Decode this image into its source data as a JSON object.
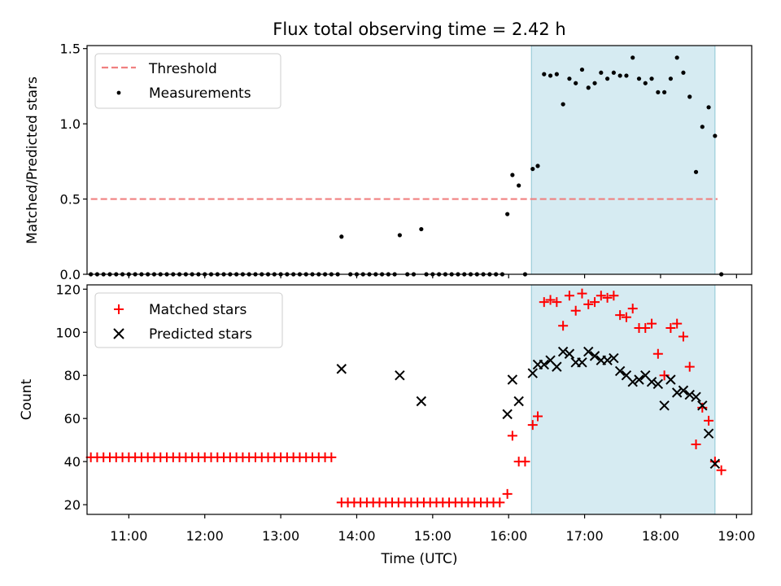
{
  "chart_data": {
    "type": "scatter",
    "title": "Flux total observing time = 2.42 h",
    "xlabel": "Time (UTC)",
    "x_ticks": [
      "11:00",
      "12:00",
      "13:00",
      "14:00",
      "15:00",
      "16:00",
      "17:00",
      "18:00",
      "19:00"
    ],
    "xlim": [
      "10:27",
      "19:12"
    ],
    "shaded_interval": [
      "16:18",
      "18:43"
    ],
    "shade_color": "#add8e6",
    "panels": [
      {
        "ylabel": "Matched/Predicted stars",
        "ylim": [
          0,
          1.52
        ],
        "y_ticks": [
          "0.0",
          "0.5",
          "1.0",
          "1.5"
        ],
        "legend": {
          "position": "upper left",
          "entries": [
            "Threshold",
            "Measurements"
          ]
        },
        "series": [
          {
            "name": "Threshold",
            "kind": "dashed-line",
            "color": "#f08080",
            "x": [
              "10:30",
              "18:45"
            ],
            "y": [
              0.5,
              0.5
            ]
          },
          {
            "name": "Measurements",
            "kind": "dot",
            "color": "#000000",
            "x": [
              "10:30",
              "10:35",
              "10:40",
              "10:45",
              "10:50",
              "10:55",
              "11:00",
              "11:05",
              "11:10",
              "11:15",
              "11:20",
              "11:25",
              "11:30",
              "11:35",
              "11:40",
              "11:45",
              "11:50",
              "11:55",
              "12:00",
              "12:05",
              "12:10",
              "12:15",
              "12:20",
              "12:25",
              "12:30",
              "12:35",
              "12:40",
              "12:45",
              "12:50",
              "12:55",
              "13:00",
              "13:05",
              "13:10",
              "13:15",
              "13:20",
              "13:25",
              "13:30",
              "13:35",
              "13:40",
              "13:45",
              "13:48",
              "13:55",
              "14:00",
              "14:05",
              "14:10",
              "14:15",
              "14:20",
              "14:25",
              "14:30",
              "14:34",
              "14:40",
              "14:45",
              "14:51",
              "14:55",
              "15:00",
              "15:05",
              "15:10",
              "15:15",
              "15:20",
              "15:25",
              "15:30",
              "15:35",
              "15:40",
              "15:45",
              "15:50",
              "15:55",
              "15:59",
              "16:03",
              "16:08",
              "16:13",
              "16:19",
              "16:23",
              "16:28",
              "16:33",
              "16:38",
              "16:43",
              "16:48",
              "16:53",
              "16:58",
              "17:03",
              "17:08",
              "17:13",
              "17:18",
              "17:23",
              "17:28",
              "17:33",
              "17:38",
              "17:43",
              "17:48",
              "17:53",
              "17:58",
              "18:03",
              "18:08",
              "18:13",
              "18:18",
              "18:23",
              "18:28",
              "18:33",
              "18:38",
              "18:43",
              "18:48"
            ],
            "y": [
              0,
              0,
              0,
              0,
              0,
              0,
              0,
              0,
              0,
              0,
              0,
              0,
              0,
              0,
              0,
              0,
              0,
              0,
              0,
              0,
              0,
              0,
              0,
              0,
              0,
              0,
              0,
              0,
              0,
              0,
              0,
              0,
              0,
              0,
              0,
              0,
              0,
              0,
              0,
              0,
              0.25,
              0,
              0,
              0,
              0,
              0,
              0,
              0,
              0,
              0.26,
              0,
              0,
              0.3,
              0,
              0,
              0,
              0,
              0,
              0,
              0,
              0,
              0,
              0,
              0,
              0,
              0,
              0.4,
              0.66,
              0.59,
              0,
              0.7,
              0.72,
              1.33,
              1.32,
              1.33,
              1.13,
              1.3,
              1.27,
              1.36,
              1.24,
              1.27,
              1.34,
              1.3,
              1.34,
              1.32,
              1.32,
              1.44,
              1.3,
              1.27,
              1.3,
              1.21,
              1.21,
              1.3,
              1.44,
              1.34,
              1.18,
              0.68,
              0.98,
              1.11,
              0.92,
              0
            ]
          }
        ]
      },
      {
        "ylabel": "Count",
        "ylim": [
          15.5,
          122
        ],
        "y_ticks": [
          "20",
          "40",
          "60",
          "80",
          "100",
          "120"
        ],
        "legend": {
          "position": "upper left",
          "entries": [
            "Matched stars",
            "Predicted stars"
          ]
        },
        "series": [
          {
            "name": "Matched stars",
            "kind": "plus",
            "color": "#ff0000",
            "x": [
              "10:30",
              "10:35",
              "10:40",
              "10:45",
              "10:50",
              "10:55",
              "11:00",
              "11:05",
              "11:10",
              "11:15",
              "11:20",
              "11:25",
              "11:30",
              "11:35",
              "11:40",
              "11:45",
              "11:50",
              "11:55",
              "12:00",
              "12:05",
              "12:10",
              "12:15",
              "12:20",
              "12:25",
              "12:30",
              "12:35",
              "12:40",
              "12:45",
              "12:50",
              "12:55",
              "13:00",
              "13:05",
              "13:10",
              "13:15",
              "13:20",
              "13:25",
              "13:30",
              "13:35",
              "13:40",
              "13:48",
              "13:53",
              "13:58",
              "14:03",
              "14:08",
              "14:13",
              "14:18",
              "14:23",
              "14:28",
              "14:33",
              "14:38",
              "14:43",
              "14:48",
              "14:53",
              "14:58",
              "15:03",
              "15:08",
              "15:13",
              "15:18",
              "15:23",
              "15:28",
              "15:33",
              "15:38",
              "15:43",
              "15:48",
              "15:53",
              "15:59",
              "16:03",
              "16:08",
              "16:13",
              "16:19",
              "16:23",
              "16:28",
              "16:33",
              "16:38",
              "16:43",
              "16:48",
              "16:53",
              "16:58",
              "17:03",
              "17:08",
              "17:13",
              "17:18",
              "17:23",
              "17:28",
              "17:33",
              "17:38",
              "17:43",
              "17:48",
              "17:53",
              "17:58",
              "18:03",
              "18:08",
              "18:13",
              "18:18",
              "18:23",
              "18:28",
              "18:33",
              "18:38",
              "18:43",
              "18:48"
            ],
            "y": [
              42,
              42,
              42,
              42,
              42,
              42,
              42,
              42,
              42,
              42,
              42,
              42,
              42,
              42,
              42,
              42,
              42,
              42,
              42,
              42,
              42,
              42,
              42,
              42,
              42,
              42,
              42,
              42,
              42,
              42,
              42,
              42,
              42,
              42,
              42,
              42,
              42,
              42,
              42,
              21,
              21,
              21,
              21,
              21,
              21,
              21,
              21,
              21,
              21,
              21,
              21,
              21,
              21,
              21,
              21,
              21,
              21,
              21,
              21,
              21,
              21,
              21,
              21,
              21,
              21,
              25,
              52,
              40,
              40,
              57,
              61,
              114,
              115,
              114,
              103,
              117,
              110,
              118,
              113,
              114,
              117,
              116,
              117,
              108,
              107,
              111,
              102,
              102,
              104,
              90,
              80,
              102,
              104,
              98,
              84,
              48,
              65,
              59,
              40,
              36
            ]
          },
          {
            "name": "Predicted stars",
            "kind": "cross",
            "color": "#000000",
            "x": [
              "13:48",
              "14:34",
              "14:51",
              "15:59",
              "16:03",
              "16:08",
              "16:19",
              "16:23",
              "16:28",
              "16:33",
              "16:38",
              "16:43",
              "16:48",
              "16:53",
              "16:58",
              "17:03",
              "17:08",
              "17:13",
              "17:18",
              "17:23",
              "17:28",
              "17:33",
              "17:38",
              "17:43",
              "17:48",
              "17:53",
              "17:58",
              "18:03",
              "18:08",
              "18:13",
              "18:18",
              "18:23",
              "18:28",
              "18:33",
              "18:38",
              "18:43"
            ],
            "y": [
              83,
              80,
              68,
              62,
              78,
              68,
              81,
              85,
              85,
              87,
              84,
              91,
              90,
              86,
              86,
              91,
              89,
              87,
              87,
              88,
              82,
              80,
              77,
              78,
              80,
              77,
              76,
              66,
              78,
              72,
              73,
              71,
              70,
              66,
              53,
              39
            ]
          }
        ]
      }
    ]
  }
}
